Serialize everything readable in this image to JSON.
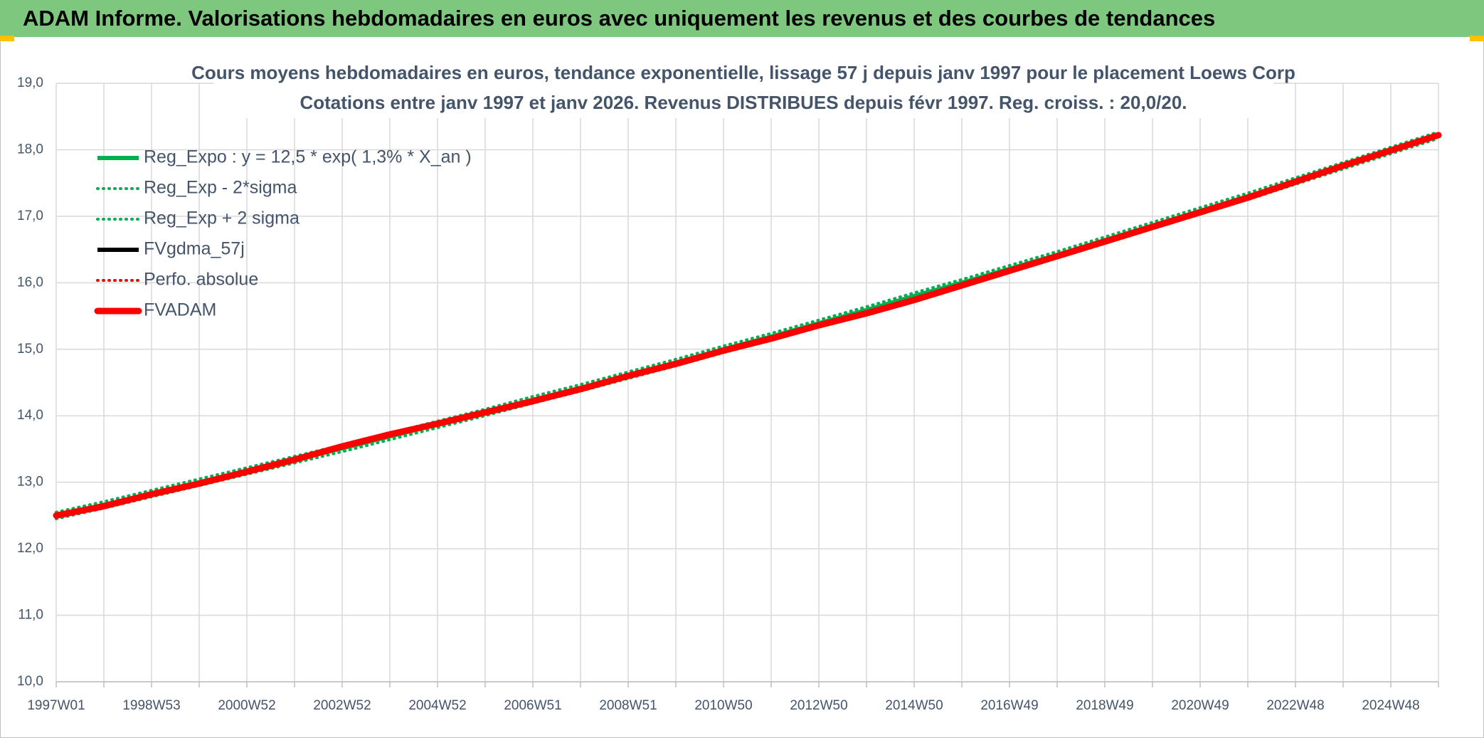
{
  "header": {
    "title": "ADAM Informe. Valorisations hebdomadaires en euros avec uniquement les revenus et des courbes de tendances"
  },
  "chart_data": {
    "type": "line",
    "title": "Cours moyens hebdomadaires en euros, tendance exponentielle, lissage 57 j depuis janv 1997 pour le placement Loews Corp",
    "subtitle": "Cotations entre janv 1997 et janv 2026. Revenus DISTRIBUES depuis févr 1997. Reg. croiss. : 20,0/20.",
    "categories": [
      "1997W01",
      null,
      "1998W53",
      null,
      "2000W52",
      null,
      "2002W52",
      null,
      "2004W52",
      null,
      "2006W51",
      null,
      "2008W51",
      null,
      "2010W50",
      null,
      "2012W50",
      null,
      "2014W50",
      null,
      "2016W49",
      null,
      "2018W49",
      null,
      "2020W49",
      null,
      "2022W48",
      null,
      "2024W48",
      null
    ],
    "ylim": [
      10,
      19
    ],
    "yticks": [
      {
        "value": 10,
        "label": "10,0"
      },
      {
        "value": 11,
        "label": "11,0"
      },
      {
        "value": 12,
        "label": "12,0"
      },
      {
        "value": 13,
        "label": "13,0"
      },
      {
        "value": 14,
        "label": "14,0"
      },
      {
        "value": 15,
        "label": "15,0"
      },
      {
        "value": 16,
        "label": "16,0"
      },
      {
        "value": 17,
        "label": "17,0"
      },
      {
        "value": 18,
        "label": "18,0"
      },
      {
        "value": 19,
        "label": "19,0"
      }
    ],
    "grid": true,
    "legend": "top-left",
    "series": [
      {
        "name": "Reg_Expo : y = 12,5 * exp( 1,3% *  X_an )",
        "color": "#00b050",
        "style": "solid",
        "values": [
          12.5,
          12.66,
          12.83,
          13.0,
          13.17,
          13.34,
          13.51,
          13.69,
          13.87,
          14.05,
          14.24,
          14.42,
          14.61,
          14.8,
          15.0,
          15.19,
          15.39,
          15.59,
          15.8,
          16.0,
          16.21,
          16.42,
          16.64,
          16.86,
          17.08,
          17.3,
          17.53,
          17.76,
          17.99,
          18.22
        ]
      },
      {
        "name": "Reg_Exp - 2*sigma",
        "color": "#00b050",
        "style": "dotted",
        "values": [
          12.45,
          12.61,
          12.78,
          12.95,
          13.12,
          13.29,
          13.46,
          13.64,
          13.82,
          14.0,
          14.19,
          14.37,
          14.56,
          14.75,
          14.95,
          15.14,
          15.34,
          15.54,
          15.75,
          15.95,
          16.16,
          16.37,
          16.59,
          16.81,
          17.03,
          17.25,
          17.48,
          17.71,
          17.94,
          18.17
        ]
      },
      {
        "name": "Reg_Exp + 2 sigma",
        "color": "#00b050",
        "style": "dotted",
        "values": [
          12.55,
          12.71,
          12.88,
          13.05,
          13.22,
          13.39,
          13.56,
          13.74,
          13.92,
          14.1,
          14.29,
          14.47,
          14.66,
          14.85,
          15.05,
          15.24,
          15.44,
          15.64,
          15.85,
          16.05,
          16.26,
          16.47,
          16.69,
          16.91,
          17.13,
          17.35,
          17.58,
          17.81,
          18.04,
          18.27
        ]
      },
      {
        "name": "FVgdma_57j",
        "color": "#000000",
        "style": "solid",
        "values": [
          12.5,
          12.64,
          12.82,
          12.98,
          13.16,
          13.34,
          13.54,
          13.72,
          13.88,
          14.05,
          14.22,
          14.4,
          14.6,
          14.78,
          14.98,
          15.16,
          15.36,
          15.54,
          15.74,
          15.96,
          16.18,
          16.4,
          16.62,
          16.84,
          17.06,
          17.28,
          17.52,
          17.76,
          17.99,
          18.22
        ]
      },
      {
        "name": "Perfo. absolue",
        "color": "#ff0000",
        "style": "dotted",
        "values": [
          12.5,
          12.64,
          12.82,
          12.98,
          13.16,
          13.34,
          13.54,
          13.72,
          13.88,
          14.05,
          14.22,
          14.4,
          14.6,
          14.78,
          14.98,
          15.16,
          15.36,
          15.54,
          15.74,
          15.96,
          16.18,
          16.4,
          16.62,
          16.84,
          17.06,
          17.28,
          17.52,
          17.76,
          17.99,
          18.22
        ]
      },
      {
        "name": "FVADAM",
        "color": "#ff0000",
        "style": "thick",
        "values": [
          12.5,
          12.64,
          12.82,
          12.98,
          13.16,
          13.34,
          13.54,
          13.72,
          13.88,
          14.05,
          14.22,
          14.4,
          14.6,
          14.78,
          14.98,
          15.16,
          15.36,
          15.54,
          15.74,
          15.96,
          16.18,
          16.4,
          16.62,
          16.84,
          17.06,
          17.28,
          17.52,
          17.76,
          17.99,
          18.22
        ]
      }
    ]
  }
}
